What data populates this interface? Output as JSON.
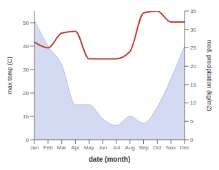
{
  "chart_data": {
    "type": "combo",
    "xlabel": "date (month)",
    "ylabel": "max temp (C)",
    "y2label": "med. precipitation (kg/m2)",
    "categories": [
      "Jan",
      "Feb",
      "Mar",
      "Apr",
      "May",
      "Jun",
      "Jul",
      "Aug",
      "Sep",
      "Oct",
      "Nov",
      "Dec"
    ],
    "series": [
      {
        "type": "area",
        "color": "#b0bce8",
        "values": [
          51,
          40,
          32,
          15,
          15,
          9,
          6,
          10,
          7,
          14,
          26,
          40
        ]
      },
      {
        "type": "line",
        "color": "#c0392b",
        "axis": "y2",
        "values": [
          26.5,
          25,
          29,
          29.5,
          22,
          22,
          22,
          24,
          34.5,
          35,
          32,
          32
        ]
      }
    ],
    "ylim": [
      0,
      55
    ],
    "yticks": [
      0,
      10,
      20,
      30,
      40,
      50
    ],
    "y2lim": [
      0,
      35
    ],
    "y2ticks": [
      0,
      5,
      10,
      15,
      20,
      25,
      30,
      35
    ],
    "grid": false
  }
}
